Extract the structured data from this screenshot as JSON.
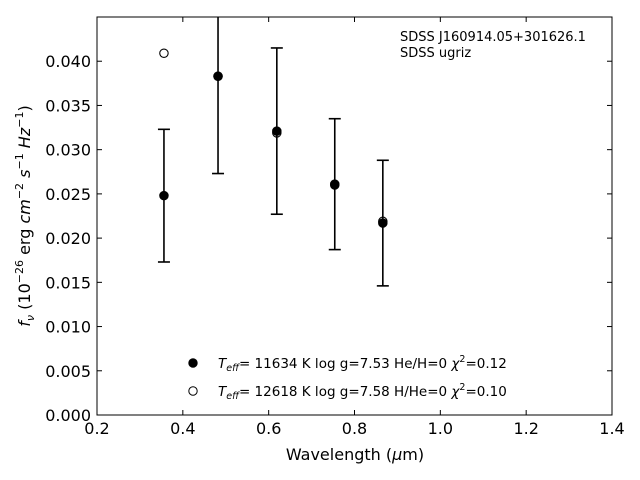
{
  "chart_data": {
    "type": "scatter",
    "xlabel": "Wavelength (μm)",
    "ylabel": "fν (10⁻²⁶ erg cm⁻² s⁻¹ Hz⁻¹)",
    "xlim": [
      0.2,
      1.4
    ],
    "ylim": [
      0.0,
      0.045
    ],
    "x_ticks": [
      "0.2",
      "0.4",
      "0.6",
      "0.8",
      "1.0",
      "1.2",
      "1.4"
    ],
    "y_ticks": [
      "0.000",
      "0.005",
      "0.010",
      "0.015",
      "0.020",
      "0.025",
      "0.030",
      "0.035",
      "0.040"
    ],
    "grid": false,
    "legend_position": "bottom-center",
    "annotations": [
      "SDSS J160914.05+301626.1",
      "SDSS ugriz"
    ],
    "observed": {
      "x": [
        0.356,
        0.482,
        0.619,
        0.754,
        0.866
      ],
      "y": [
        0.0248,
        0.0383,
        0.0321,
        0.0261,
        0.0217
      ],
      "err": [
        0.0075,
        0.011,
        0.0094,
        0.0074,
        0.0071
      ]
    },
    "series": [
      {
        "name": "T_eff= 11634 K  log g=7.53  He/H=0  χ²=0.12",
        "marker": "filled-circle",
        "x": [
          0.356,
          0.482,
          0.619,
          0.754,
          0.866
        ],
        "y": [
          0.0248,
          0.0383,
          0.0321,
          0.0261,
          0.0217
        ]
      },
      {
        "name": "T_eff= 12618 K  log g=7.58  H/He=0  χ²=0.10",
        "marker": "open-circle",
        "x": [
          0.356,
          0.482,
          0.619,
          0.754,
          0.866
        ],
        "y": [
          0.0409,
          0.0383,
          0.0319,
          0.026,
          0.0219
        ]
      }
    ]
  }
}
